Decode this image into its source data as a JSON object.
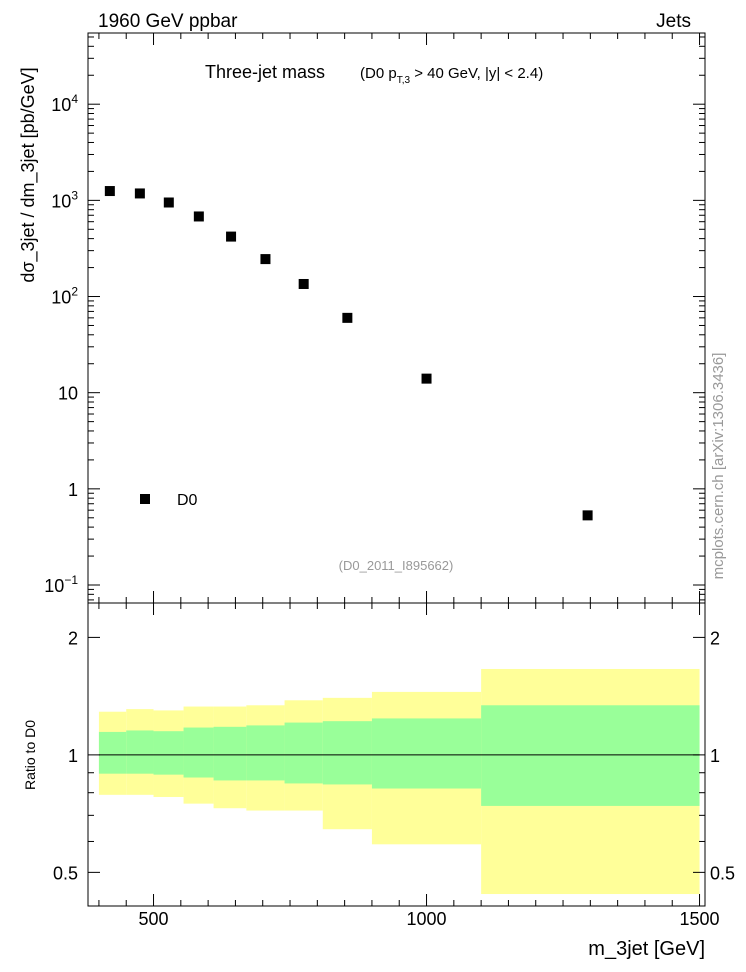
{
  "header": {
    "left": "1960 GeV ppbar",
    "right": "Jets"
  },
  "watermark": "mcplots.cern.ch [arXiv:1306.3436]",
  "chart_data": [
    {
      "type": "scatter",
      "title": "Three-jet mass",
      "title_note": {
        "prefix": "(D0 p",
        "sub": "T,3",
        "suffix": " > 40 GeV, |y| < 2.4)"
      },
      "analysis_id": "(D0_2011_I895662)",
      "ylabel": "dσ_3jet / dm_3jet [pb/GeV]",
      "xlim": [
        380,
        1510
      ],
      "ylim": [
        0.065,
        55000
      ],
      "yscale": "log",
      "y_ticks": [
        {
          "v": 0.1,
          "base": "10",
          "exp": "−1"
        },
        {
          "v": 1,
          "base": "1",
          "exp": ""
        },
        {
          "v": 10,
          "base": "10",
          "exp": ""
        },
        {
          "v": 100,
          "base": "10",
          "exp": "2"
        },
        {
          "v": 1000,
          "base": "10",
          "exp": "3"
        },
        {
          "v": 10000,
          "base": "10",
          "exp": "4"
        }
      ],
      "legend": {
        "label": "D0",
        "position": "bottom-left"
      },
      "series": [
        {
          "name": "D0",
          "color": "#000000",
          "marker": "square",
          "x": [
            420,
            475,
            528,
            583,
            642,
            705,
            775,
            855,
            1000,
            1295
          ],
          "y": [
            1250,
            1180,
            950,
            680,
            420,
            245,
            135,
            60,
            14,
            0.53
          ]
        }
      ]
    },
    {
      "type": "area",
      "ylabel": "Ratio to D0",
      "xlabel": "m_3jet [GeV]",
      "xlim": [
        380,
        1510
      ],
      "ylim": [
        0.41,
        2.45
      ],
      "yscale": "log",
      "y_ticks": [
        0.5,
        1,
        2
      ],
      "x_ticks": [
        500,
        1000,
        1500
      ],
      "reference_line": 1,
      "colors": {
        "inner_band": "#99ff99",
        "outer_band": "#ffff99",
        "line": "#000000"
      },
      "bins": [
        {
          "xlow": 400,
          "xhigh": 450,
          "inner": [
            0.895,
            1.145
          ],
          "outer": [
            0.79,
            1.29
          ]
        },
        {
          "xlow": 450,
          "xhigh": 500,
          "inner": [
            0.895,
            1.155
          ],
          "outer": [
            0.79,
            1.31
          ]
        },
        {
          "xlow": 500,
          "xhigh": 555,
          "inner": [
            0.89,
            1.15
          ],
          "outer": [
            0.78,
            1.3
          ]
        },
        {
          "xlow": 555,
          "xhigh": 610,
          "inner": [
            0.875,
            1.175
          ],
          "outer": [
            0.75,
            1.33
          ]
        },
        {
          "xlow": 610,
          "xhigh": 670,
          "inner": [
            0.86,
            1.18
          ],
          "outer": [
            0.73,
            1.33
          ]
        },
        {
          "xlow": 670,
          "xhigh": 740,
          "inner": [
            0.86,
            1.19
          ],
          "outer": [
            0.72,
            1.34
          ]
        },
        {
          "xlow": 740,
          "xhigh": 810,
          "inner": [
            0.845,
            1.21
          ],
          "outer": [
            0.72,
            1.38
          ]
        },
        {
          "xlow": 810,
          "xhigh": 900,
          "inner": [
            0.84,
            1.22
          ],
          "outer": [
            0.645,
            1.4
          ]
        },
        {
          "xlow": 900,
          "xhigh": 1100,
          "inner": [
            0.82,
            1.24
          ],
          "outer": [
            0.59,
            1.45
          ]
        },
        {
          "xlow": 1100,
          "xhigh": 1500,
          "inner": [
            0.74,
            1.34
          ],
          "outer": [
            0.44,
            1.66
          ]
        }
      ]
    }
  ]
}
